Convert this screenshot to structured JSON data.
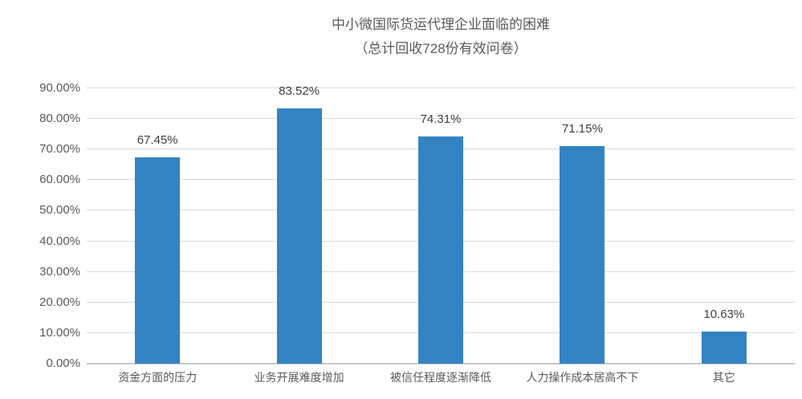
{
  "chart_data": {
    "type": "bar",
    "title": "中小微国际货运代理企业面临的困难",
    "subtitle": "（总计回收728份有效问卷）",
    "categories": [
      "资金方面的压力",
      "业务开展难度增加",
      "被信任程度逐渐降低",
      "人力操作成本居高不下",
      "其它"
    ],
    "values": [
      67.45,
      83.52,
      74.31,
      71.15,
      10.63
    ],
    "value_labels": [
      "67.45%",
      "83.52%",
      "74.31%",
      "71.15%",
      "10.63%"
    ],
    "y_tick_values": [
      0,
      10,
      20,
      30,
      40,
      50,
      60,
      70,
      80,
      90
    ],
    "y_tick_labels": [
      "0.00%",
      "10.00%",
      "20.00%",
      "30.00%",
      "40.00%",
      "50.00%",
      "60.00%",
      "70.00%",
      "80.00%",
      "90.00%"
    ],
    "ylim": [
      0,
      90
    ],
    "xlabel": "",
    "ylabel": "",
    "grid": "horizontal",
    "legend": "none",
    "colors": {
      "bar": "#3383c3",
      "gridline": "#d9d9de",
      "axis_line": "#c6c6cc",
      "tick_text": "#595959",
      "value_text": "#404040",
      "title_text": "#595959",
      "background": "#ffffff"
    }
  }
}
